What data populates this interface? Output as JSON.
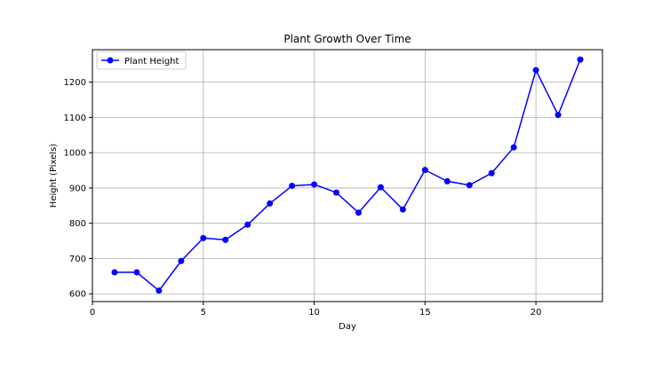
{
  "chart_data": {
    "type": "line",
    "title": "Plant Growth Over Time",
    "xlabel": "Day",
    "ylabel": "Height (Pixels)",
    "xlim": [
      0,
      23
    ],
    "ylim": [
      578,
      1292
    ],
    "xticks": [
      0,
      5,
      10,
      15,
      20
    ],
    "yticks": [
      600,
      700,
      800,
      900,
      1000,
      1100,
      1200
    ],
    "grid": true,
    "legend_position": "top-left",
    "series": [
      {
        "name": "Plant Height",
        "color": "#0000ff",
        "marker": "circle",
        "x": [
          1,
          2,
          3,
          4,
          5,
          6,
          7,
          8,
          9,
          10,
          11,
          12,
          13,
          14,
          15,
          16,
          17,
          18,
          19,
          20,
          21,
          22
        ],
        "y": [
          661,
          661,
          609,
          693,
          758,
          753,
          796,
          856,
          906,
          910,
          887,
          830,
          902,
          839,
          951,
          919,
          908,
          942,
          1015,
          1234,
          1107,
          1264
        ]
      }
    ]
  }
}
